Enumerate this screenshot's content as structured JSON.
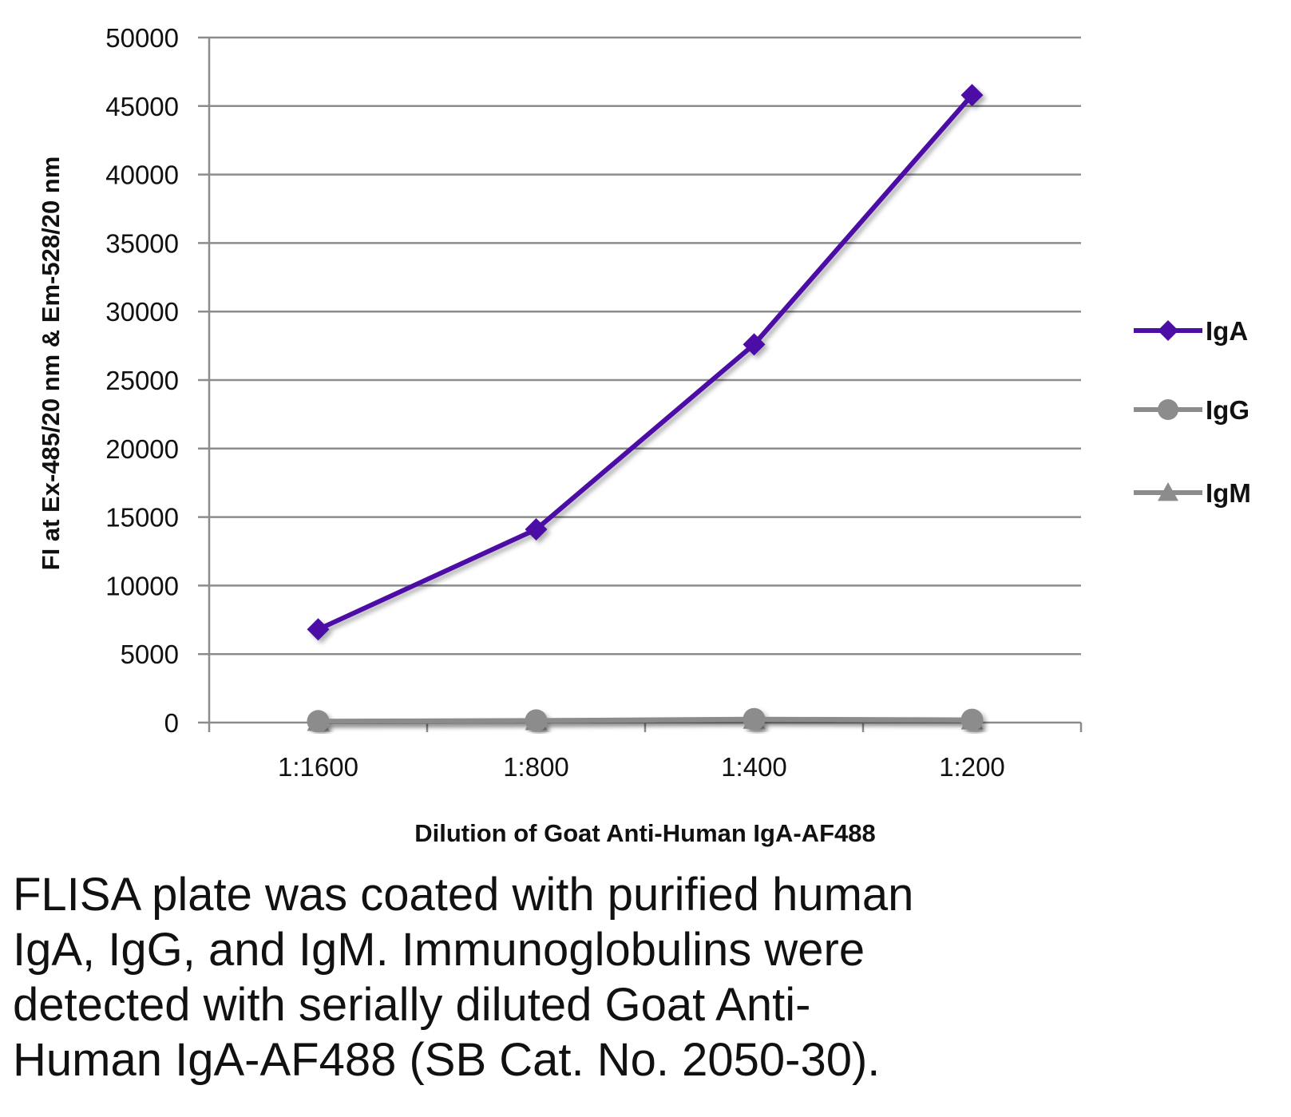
{
  "chart_data": {
    "type": "line",
    "title": "",
    "xlabel": "Dilution of Goat Anti-Human IgA-AF488",
    "ylabel": "FI at Ex-485/20 nm & Em-528/20 nm",
    "categories": [
      "1:1600",
      "1:800",
      "1:400",
      "1:200"
    ],
    "ylim": [
      0,
      50000
    ],
    "yticks": [
      0,
      5000,
      10000,
      15000,
      20000,
      25000,
      30000,
      35000,
      40000,
      45000,
      50000
    ],
    "grid": true,
    "legend_position": "right",
    "series": [
      {
        "name": "IgA",
        "marker": "diamond",
        "color": "#4b0fa6",
        "values": [
          6800,
          14100,
          27600,
          45800
        ]
      },
      {
        "name": "IgG",
        "marker": "circle",
        "color": "#8c8c8c",
        "values": [
          100,
          150,
          250,
          200
        ]
      },
      {
        "name": "IgM",
        "marker": "triangle",
        "color": "#8c8c8c",
        "values": [
          50,
          100,
          200,
          150
        ]
      }
    ]
  },
  "caption": {
    "lines": [
      "FLISA plate was coated with purified human",
      "IgA, IgG, and IgM.  Immunoglobulins were",
      "detected with serially diluted Goat Anti-",
      "Human IgA-AF488 (SB Cat. No. 2050-30)."
    ]
  }
}
